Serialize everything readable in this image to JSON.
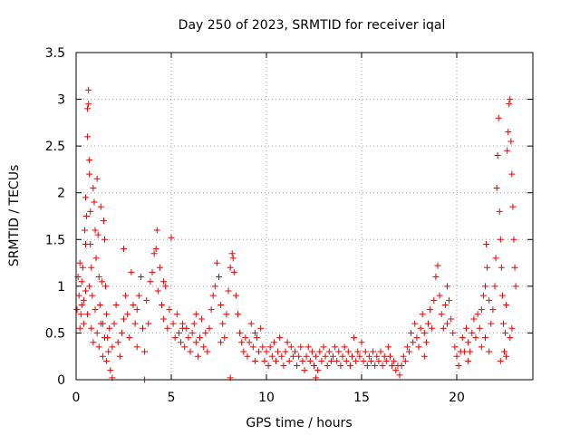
{
  "chart_data": {
    "type": "scatter",
    "title": "Day 250 of 2023, SRMTID for receiver iqal",
    "xlabel": "GPS time / hours",
    "ylabel": "SRMTID / TECUs",
    "xlim": [
      0,
      24
    ],
    "ylim": [
      0,
      3.5
    ],
    "xticks": [
      0,
      5,
      10,
      15,
      20
    ],
    "xtick_labels": [
      "0",
      "5",
      "10",
      "15",
      "20"
    ],
    "yticks": [
      0,
      0.5,
      1,
      1.5,
      2,
      2.5,
      3,
      3.5
    ],
    "ytick_labels": [
      "0",
      "0.5",
      "1",
      "1.5",
      "2",
      "2.5",
      "3",
      "3.5"
    ],
    "grid": true,
    "marker": "+",
    "color": "#ee0000",
    "series": [
      {
        "name": "iqal",
        "points": [
          [
            0.05,
            0.75
          ],
          [
            0.1,
            1.1
          ],
          [
            0.15,
            0.9
          ],
          [
            0.2,
            1.25
          ],
          [
            0.25,
            0.7
          ],
          [
            0.3,
            1.05
          ],
          [
            0.35,
            1.2
          ],
          [
            0.4,
            0.85
          ],
          [
            0.45,
            1.6
          ],
          [
            0.5,
            1.95
          ],
          [
            0.5,
            1.45
          ],
          [
            0.55,
            1.75
          ],
          [
            0.6,
            2.6
          ],
          [
            0.6,
            2.9
          ],
          [
            0.65,
            3.1
          ],
          [
            0.65,
            2.95
          ],
          [
            0.7,
            2.35
          ],
          [
            0.7,
            2.2
          ],
          [
            0.75,
            1.8
          ],
          [
            0.75,
            1.45
          ],
          [
            0.8,
            1.2
          ],
          [
            0.85,
            0.9
          ],
          [
            0.9,
            2.05
          ],
          [
            0.95,
            1.9
          ],
          [
            1.0,
            1.6
          ],
          [
            1.05,
            1.3
          ],
          [
            1.1,
            2.15
          ],
          [
            1.15,
            1.55
          ],
          [
            1.2,
            1.1
          ],
          [
            1.25,
            0.8
          ],
          [
            1.3,
            1.85
          ],
          [
            1.35,
            1.05
          ],
          [
            1.4,
            0.6
          ],
          [
            1.45,
            1.7
          ],
          [
            1.5,
            1.5
          ],
          [
            1.55,
            1.0
          ],
          [
            1.6,
            0.7
          ],
          [
            1.65,
            0.45
          ],
          [
            1.7,
            0.3
          ],
          [
            1.75,
            0.55
          ],
          [
            0.2,
            0.55
          ],
          [
            0.3,
            0.8
          ],
          [
            0.4,
            0.6
          ],
          [
            0.5,
            0.95
          ],
          [
            0.6,
            0.7
          ],
          [
            0.7,
            1.0
          ],
          [
            0.8,
            0.55
          ],
          [
            0.9,
            0.4
          ],
          [
            1.0,
            0.75
          ],
          [
            1.1,
            0.5
          ],
          [
            1.2,
            0.35
          ],
          [
            1.3,
            0.6
          ],
          [
            1.4,
            0.25
          ],
          [
            1.5,
            0.45
          ],
          [
            1.6,
            0.2
          ],
          [
            1.8,
            0.1
          ],
          [
            1.9,
            0.35
          ],
          [
            2.0,
            0.6
          ],
          [
            2.1,
            0.8
          ],
          [
            2.2,
            0.4
          ],
          [
            2.3,
            0.25
          ],
          [
            2.4,
            0.5
          ],
          [
            2.5,
            1.4
          ],
          [
            2.6,
            0.9
          ],
          [
            2.7,
            0.7
          ],
          [
            2.8,
            0.45
          ],
          [
            2.9,
            1.15
          ],
          [
            3.0,
            0.8
          ],
          [
            3.1,
            0.6
          ],
          [
            3.2,
            0.35
          ],
          [
            3.3,
            0.9
          ],
          [
            3.4,
            1.1
          ],
          [
            3.5,
            0.55
          ],
          [
            3.6,
            0.3
          ],
          [
            3.7,
            0.85
          ],
          [
            3.8,
            0.6
          ],
          [
            3.9,
            1.05
          ],
          [
            4.0,
            1.15
          ],
          [
            4.1,
            1.35
          ],
          [
            4.2,
            1.4
          ],
          [
            4.25,
            1.6
          ],
          [
            4.3,
            0.95
          ],
          [
            4.4,
            1.2
          ],
          [
            4.5,
            0.8
          ],
          [
            4.6,
            0.65
          ],
          [
            4.7,
            1.0
          ],
          [
            4.8,
            0.55
          ],
          [
            4.9,
            0.75
          ],
          [
            5.0,
            1.52
          ],
          [
            5.1,
            0.6
          ],
          [
            5.2,
            0.45
          ],
          [
            5.3,
            0.7
          ],
          [
            5.4,
            0.5
          ],
          [
            5.5,
            0.4
          ],
          [
            5.6,
            0.6
          ],
          [
            5.7,
            0.35
          ],
          [
            5.8,
            0.55
          ],
          [
            5.9,
            0.45
          ],
          [
            6.0,
            0.3
          ],
          [
            6.1,
            0.5
          ],
          [
            6.2,
            0.6
          ],
          [
            6.3,
            0.4
          ],
          [
            6.4,
            0.25
          ],
          [
            6.5,
            0.45
          ],
          [
            6.6,
            0.65
          ],
          [
            6.7,
            0.35
          ],
          [
            6.8,
            0.5
          ],
          [
            6.9,
            0.3
          ],
          [
            7.0,
            0.55
          ],
          [
            7.1,
            0.75
          ],
          [
            7.2,
            0.9
          ],
          [
            7.3,
            1.0
          ],
          [
            7.4,
            1.25
          ],
          [
            7.5,
            1.1
          ],
          [
            7.6,
            0.8
          ],
          [
            7.7,
            0.6
          ],
          [
            7.8,
            0.45
          ],
          [
            7.9,
            0.7
          ],
          [
            8.0,
            0.95
          ],
          [
            8.1,
            1.2
          ],
          [
            8.2,
            1.35
          ],
          [
            8.25,
            1.3
          ],
          [
            8.3,
            1.15
          ],
          [
            8.4,
            0.9
          ],
          [
            8.5,
            0.7
          ],
          [
            8.6,
            0.5
          ],
          [
            8.7,
            0.4
          ],
          [
            8.8,
            0.3
          ],
          [
            8.9,
            0.45
          ],
          [
            9.0,
            0.25
          ],
          [
            9.1,
            0.4
          ],
          [
            9.2,
            0.6
          ],
          [
            9.3,
            0.35
          ],
          [
            9.4,
            0.2
          ],
          [
            9.5,
            0.45
          ],
          [
            9.6,
            0.3
          ],
          [
            9.7,
            0.55
          ],
          [
            9.8,
            0.35
          ],
          [
            9.9,
            0.2
          ],
          [
            10.0,
            0.3
          ],
          [
            10.1,
            0.15
          ],
          [
            10.2,
            0.35
          ],
          [
            10.3,
            0.25
          ],
          [
            10.4,
            0.4
          ],
          [
            10.5,
            0.2
          ],
          [
            10.6,
            0.3
          ],
          [
            10.7,
            0.45
          ],
          [
            10.8,
            0.25
          ],
          [
            10.9,
            0.15
          ],
          [
            11.0,
            0.3
          ],
          [
            11.1,
            0.4
          ],
          [
            11.2,
            0.2
          ],
          [
            11.3,
            0.35
          ],
          [
            11.4,
            0.25
          ],
          [
            11.5,
            0.3
          ],
          [
            11.6,
            0.15
          ],
          [
            11.7,
            0.25
          ],
          [
            11.8,
            0.35
          ],
          [
            11.9,
            0.2
          ],
          [
            12.0,
            0.1
          ],
          [
            12.1,
            0.25
          ],
          [
            12.2,
            0.35
          ],
          [
            12.3,
            0.2
          ],
          [
            12.4,
            0.3
          ],
          [
            12.5,
            0.15
          ],
          [
            12.6,
            0.25
          ],
          [
            12.7,
            0.1
          ],
          [
            12.8,
            0.3
          ],
          [
            12.9,
            0.2
          ],
          [
            13.0,
            0.35
          ],
          [
            13.1,
            0.25
          ],
          [
            13.2,
            0.15
          ],
          [
            13.3,
            0.3
          ],
          [
            13.4,
            0.2
          ],
          [
            13.5,
            0.25
          ],
          [
            13.6,
            0.35
          ],
          [
            13.7,
            0.2
          ],
          [
            13.8,
            0.3
          ],
          [
            13.9,
            0.15
          ],
          [
            14.0,
            0.25
          ],
          [
            14.1,
            0.35
          ],
          [
            14.2,
            0.2
          ],
          [
            14.3,
            0.3
          ],
          [
            14.4,
            0.15
          ],
          [
            14.5,
            0.25
          ],
          [
            14.6,
            0.45
          ],
          [
            14.7,
            0.2
          ],
          [
            14.8,
            0.3
          ],
          [
            14.9,
            0.25
          ],
          [
            15.0,
            0.4
          ],
          [
            15.1,
            0.2
          ],
          [
            15.2,
            0.3
          ],
          [
            15.3,
            0.15
          ],
          [
            15.4,
            0.25
          ],
          [
            15.5,
            0.2
          ],
          [
            15.6,
            0.3
          ],
          [
            15.7,
            0.15
          ],
          [
            15.8,
            0.25
          ],
          [
            15.9,
            0.2
          ],
          [
            16.0,
            0.3
          ],
          [
            16.1,
            0.15
          ],
          [
            16.2,
            0.25
          ],
          [
            16.3,
            0.2
          ],
          [
            16.4,
            0.35
          ],
          [
            16.5,
            0.25
          ],
          [
            16.6,
            0.15
          ],
          [
            16.7,
            0.2
          ],
          [
            16.8,
            0.1
          ],
          [
            16.9,
            0.15
          ],
          [
            17.0,
            0.05
          ],
          [
            17.1,
            0.15
          ],
          [
            17.2,
            0.25
          ],
          [
            17.3,
            0.2
          ],
          [
            17.4,
            0.35
          ],
          [
            17.5,
            0.3
          ],
          [
            17.6,
            0.5
          ],
          [
            17.7,
            0.4
          ],
          [
            17.8,
            0.6
          ],
          [
            17.9,
            0.45
          ],
          [
            18.0,
            0.35
          ],
          [
            18.1,
            0.55
          ],
          [
            18.2,
            0.7
          ],
          [
            18.3,
            0.5
          ],
          [
            18.4,
            0.4
          ],
          [
            18.5,
            0.6
          ],
          [
            18.6,
            0.75
          ],
          [
            18.7,
            0.55
          ],
          [
            18.8,
            0.85
          ],
          [
            18.9,
            1.1
          ],
          [
            19.0,
            1.22
          ],
          [
            19.1,
            0.9
          ],
          [
            19.2,
            0.7
          ],
          [
            19.3,
            0.55
          ],
          [
            19.4,
            0.8
          ],
          [
            19.5,
            1.0
          ],
          [
            19.6,
            0.85
          ],
          [
            19.7,
            0.65
          ],
          [
            19.8,
            0.5
          ],
          [
            19.9,
            0.35
          ],
          [
            20.0,
            0.25
          ],
          [
            20.1,
            0.15
          ],
          [
            20.2,
            0.3
          ],
          [
            20.3,
            0.45
          ],
          [
            20.4,
            0.3
          ],
          [
            20.5,
            0.55
          ],
          [
            20.6,
            0.4
          ],
          [
            20.7,
            0.3
          ],
          [
            20.8,
            0.5
          ],
          [
            20.9,
            0.65
          ],
          [
            21.0,
            0.45
          ],
          [
            21.1,
            0.7
          ],
          [
            21.2,
            0.55
          ],
          [
            21.3,
            0.75
          ],
          [
            21.4,
            0.9
          ],
          [
            21.5,
            1.0
          ],
          [
            21.55,
            1.45
          ],
          [
            21.6,
            1.2
          ],
          [
            21.7,
            0.85
          ],
          [
            21.8,
            0.6
          ],
          [
            21.9,
            0.75
          ],
          [
            22.0,
            1.0
          ],
          [
            22.05,
            1.3
          ],
          [
            22.1,
            2.05
          ],
          [
            22.15,
            2.4
          ],
          [
            22.2,
            2.8
          ],
          [
            22.25,
            1.8
          ],
          [
            22.3,
            1.5
          ],
          [
            22.35,
            1.2
          ],
          [
            22.4,
            0.9
          ],
          [
            22.45,
            0.6
          ],
          [
            22.5,
            0.3
          ],
          [
            22.55,
            0.5
          ],
          [
            22.6,
            0.8
          ],
          [
            22.65,
            2.45
          ],
          [
            22.7,
            2.65
          ],
          [
            22.75,
            2.95
          ],
          [
            22.8,
            3.0
          ],
          [
            22.85,
            2.55
          ],
          [
            22.9,
            2.2
          ],
          [
            22.95,
            1.85
          ],
          [
            23.0,
            1.5
          ],
          [
            23.05,
            1.2
          ],
          [
            23.1,
            1.0
          ],
          [
            21.3,
            0.35
          ],
          [
            21.5,
            0.45
          ],
          [
            21.7,
            0.3
          ],
          [
            22.3,
            0.2
          ],
          [
            22.6,
            0.25
          ],
          [
            22.9,
            0.55
          ],
          [
            22.8,
            0.45
          ],
          [
            20.6,
            0.2
          ],
          [
            19.5,
            0.6
          ],
          [
            18.3,
            0.25
          ],
          [
            3.6,
            0.0
          ],
          [
            1.9,
            0.02
          ],
          [
            8.1,
            0.02
          ],
          [
            12.6,
            0.02
          ],
          [
            2.5,
            0.65
          ],
          [
            3.2,
            0.75
          ],
          [
            4.6,
            1.05
          ],
          [
            5.6,
            0.55
          ],
          [
            6.3,
            0.7
          ],
          [
            7.6,
            0.4
          ],
          [
            9.4,
            0.5
          ]
        ]
      }
    ]
  }
}
